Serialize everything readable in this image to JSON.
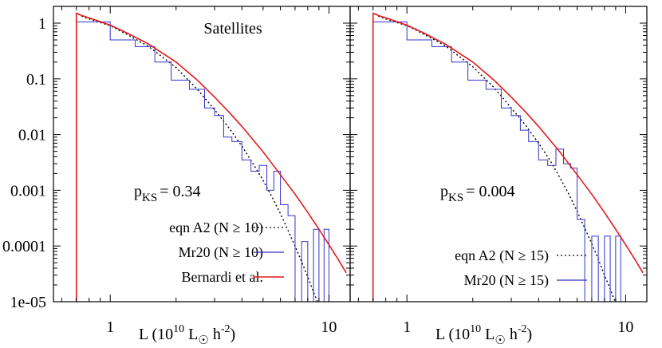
{
  "chart_data": [
    {
      "type": "line",
      "panel": "left",
      "annotation": "Satellites",
      "pks": {
        "base": "p",
        "sub": "KS",
        "value": "= 0.34"
      },
      "xlabel": {
        "pre": "L (10",
        "exp1": "10",
        "mid": " L",
        "sun": "☉",
        "post": " h",
        "exp2": "-2",
        "close": ")"
      },
      "xscale": "log",
      "yscale": "log",
      "xlim": [
        0.55,
        12.5
      ],
      "ylim": [
        1e-05,
        2
      ],
      "x_ticks": [
        {
          "v": 1,
          "label": "1"
        },
        {
          "v": 10,
          "label": "10"
        }
      ],
      "y_ticks": [
        {
          "v": 1,
          "label": "1"
        },
        {
          "v": 0.1,
          "label": "0.1"
        },
        {
          "v": 0.01,
          "label": "0.01"
        },
        {
          "v": 0.001,
          "label": "0.001"
        },
        {
          "v": 0.0001,
          "label": "0.0001"
        },
        {
          "v": 1e-05,
          "label": "1e-05"
        }
      ],
      "series": [
        {
          "name": "eqn A2 (N ≥ 10)",
          "style": "dotted",
          "color": "#000000",
          "x": [
            0.7,
            0.75,
            0.85,
            1.0,
            1.2,
            1.5,
            2.0,
            2.5,
            3.0,
            3.5,
            4.0,
            4.5,
            5.0,
            5.5,
            6.0,
            6.5,
            7.0,
            7.5,
            8.0,
            8.5,
            9.0
          ],
          "y": [
            1.55,
            1.3,
            1.1,
            0.9,
            0.62,
            0.38,
            0.16,
            0.065,
            0.028,
            0.013,
            0.0062,
            0.003,
            0.0015,
            0.00075,
            0.00038,
            0.00019,
            0.0001,
            5.2e-05,
            2.8e-05,
            1.5e-05,
            8.5e-06
          ]
        },
        {
          "name": "Mr20 (N ≥ 10)",
          "style": "step",
          "color": "#3333cc",
          "edges": [
            0.7,
            1.0,
            1.3,
            1.6,
            1.9,
            2.3,
            2.7,
            3.0,
            3.3,
            3.6,
            4.0,
            4.4,
            4.8,
            5.2,
            5.6,
            6.0,
            6.5,
            7.0,
            7.5,
            8.0,
            8.5,
            9.0,
            9.5,
            10.0
          ],
          "values": [
            1.05,
            0.5,
            0.38,
            0.2,
            0.095,
            0.065,
            0.03,
            0.022,
            0.009,
            0.0075,
            0.0035,
            0.0022,
            0.0028,
            0.001,
            0.0022,
            0.00055,
            0.00035,
            1e-05,
            0.00012,
            1e-05,
            0.0002,
            1e-05,
            0.0002
          ]
        },
        {
          "name": "Bernardi et al.",
          "style": "solid",
          "color": "#e31a1c",
          "x": [
            0.7,
            0.75,
            0.85,
            1.0,
            1.2,
            1.5,
            2.0,
            2.5,
            3.0,
            3.5,
            4.0,
            5.0,
            6.0,
            7.0,
            8.0,
            9.0,
            10.0,
            11.0,
            12.0
          ],
          "y": [
            1.5,
            1.35,
            1.15,
            0.92,
            0.66,
            0.42,
            0.2,
            0.095,
            0.047,
            0.025,
            0.014,
            0.0049,
            0.0019,
            0.00085,
            0.0004,
            0.0002,
            0.000105,
            5.8e-05,
            3.3e-05
          ]
        }
      ]
    },
    {
      "type": "line",
      "panel": "right",
      "annotation": "",
      "pks": {
        "base": "p",
        "sub": "KS",
        "value": "= 0.004"
      },
      "xlabel": {
        "pre": "L (10",
        "exp1": "10",
        "mid": " L",
        "sun": "☉",
        "post": " h",
        "exp2": "-2",
        "close": ")"
      },
      "xscale": "log",
      "yscale": "log",
      "xlim": [
        0.55,
        12.5
      ],
      "ylim": [
        1e-05,
        2
      ],
      "x_ticks": [
        {
          "v": 1,
          "label": "1"
        },
        {
          "v": 10,
          "label": "10"
        }
      ],
      "series": [
        {
          "name": "eqn A2 (N ≥ 15)",
          "style": "dotted",
          "color": "#000000",
          "x": [
            0.7,
            0.75,
            0.85,
            1.0,
            1.2,
            1.5,
            2.0,
            2.5,
            3.0,
            3.5,
            4.0,
            4.5,
            5.0,
            5.5,
            6.0,
            6.5,
            7.0,
            7.5,
            8.0,
            8.5,
            9.0,
            9.5
          ],
          "y": [
            1.55,
            1.3,
            1.1,
            0.9,
            0.63,
            0.39,
            0.165,
            0.07,
            0.03,
            0.0145,
            0.007,
            0.0035,
            0.0017,
            0.00085,
            0.00042,
            0.00021,
            0.00011,
            5.8e-05,
            3e-05,
            1.7e-05,
            9.5e-06,
            5.5e-06
          ]
        },
        {
          "name": "Mr20 (N ≥ 15)",
          "style": "step",
          "color": "#3333cc",
          "edges": [
            0.7,
            1.0,
            1.3,
            1.6,
            1.9,
            2.3,
            2.7,
            3.0,
            3.3,
            3.6,
            4.0,
            4.4,
            4.8,
            5.2,
            5.6,
            6.0,
            6.5,
            7.0,
            7.5,
            8.0,
            8.5,
            9.0,
            9.5,
            10.0
          ],
          "values": [
            1.05,
            0.5,
            0.38,
            0.2,
            0.095,
            0.065,
            0.03,
            0.022,
            0.012,
            0.0075,
            0.0035,
            0.0028,
            0.0055,
            0.003,
            0.0025,
            0.0003,
            1e-05,
            0.00015,
            1e-05,
            0.00015,
            1e-05,
            0.00015,
            1e-05
          ]
        },
        {
          "name": "Bernardi et al.",
          "style": "solid",
          "color": "#e31a1c",
          "legend": false,
          "x": [
            0.7,
            0.75,
            0.85,
            1.0,
            1.2,
            1.5,
            2.0,
            2.5,
            3.0,
            3.5,
            4.0,
            5.0,
            6.0,
            7.0,
            8.0,
            9.0,
            10.0,
            11.0,
            12.0
          ],
          "y": [
            1.5,
            1.35,
            1.15,
            0.92,
            0.66,
            0.42,
            0.2,
            0.095,
            0.047,
            0.025,
            0.014,
            0.0049,
            0.0019,
            0.00085,
            0.0004,
            0.0002,
            0.000105,
            5.8e-05,
            3.3e-05
          ]
        }
      ]
    }
  ]
}
